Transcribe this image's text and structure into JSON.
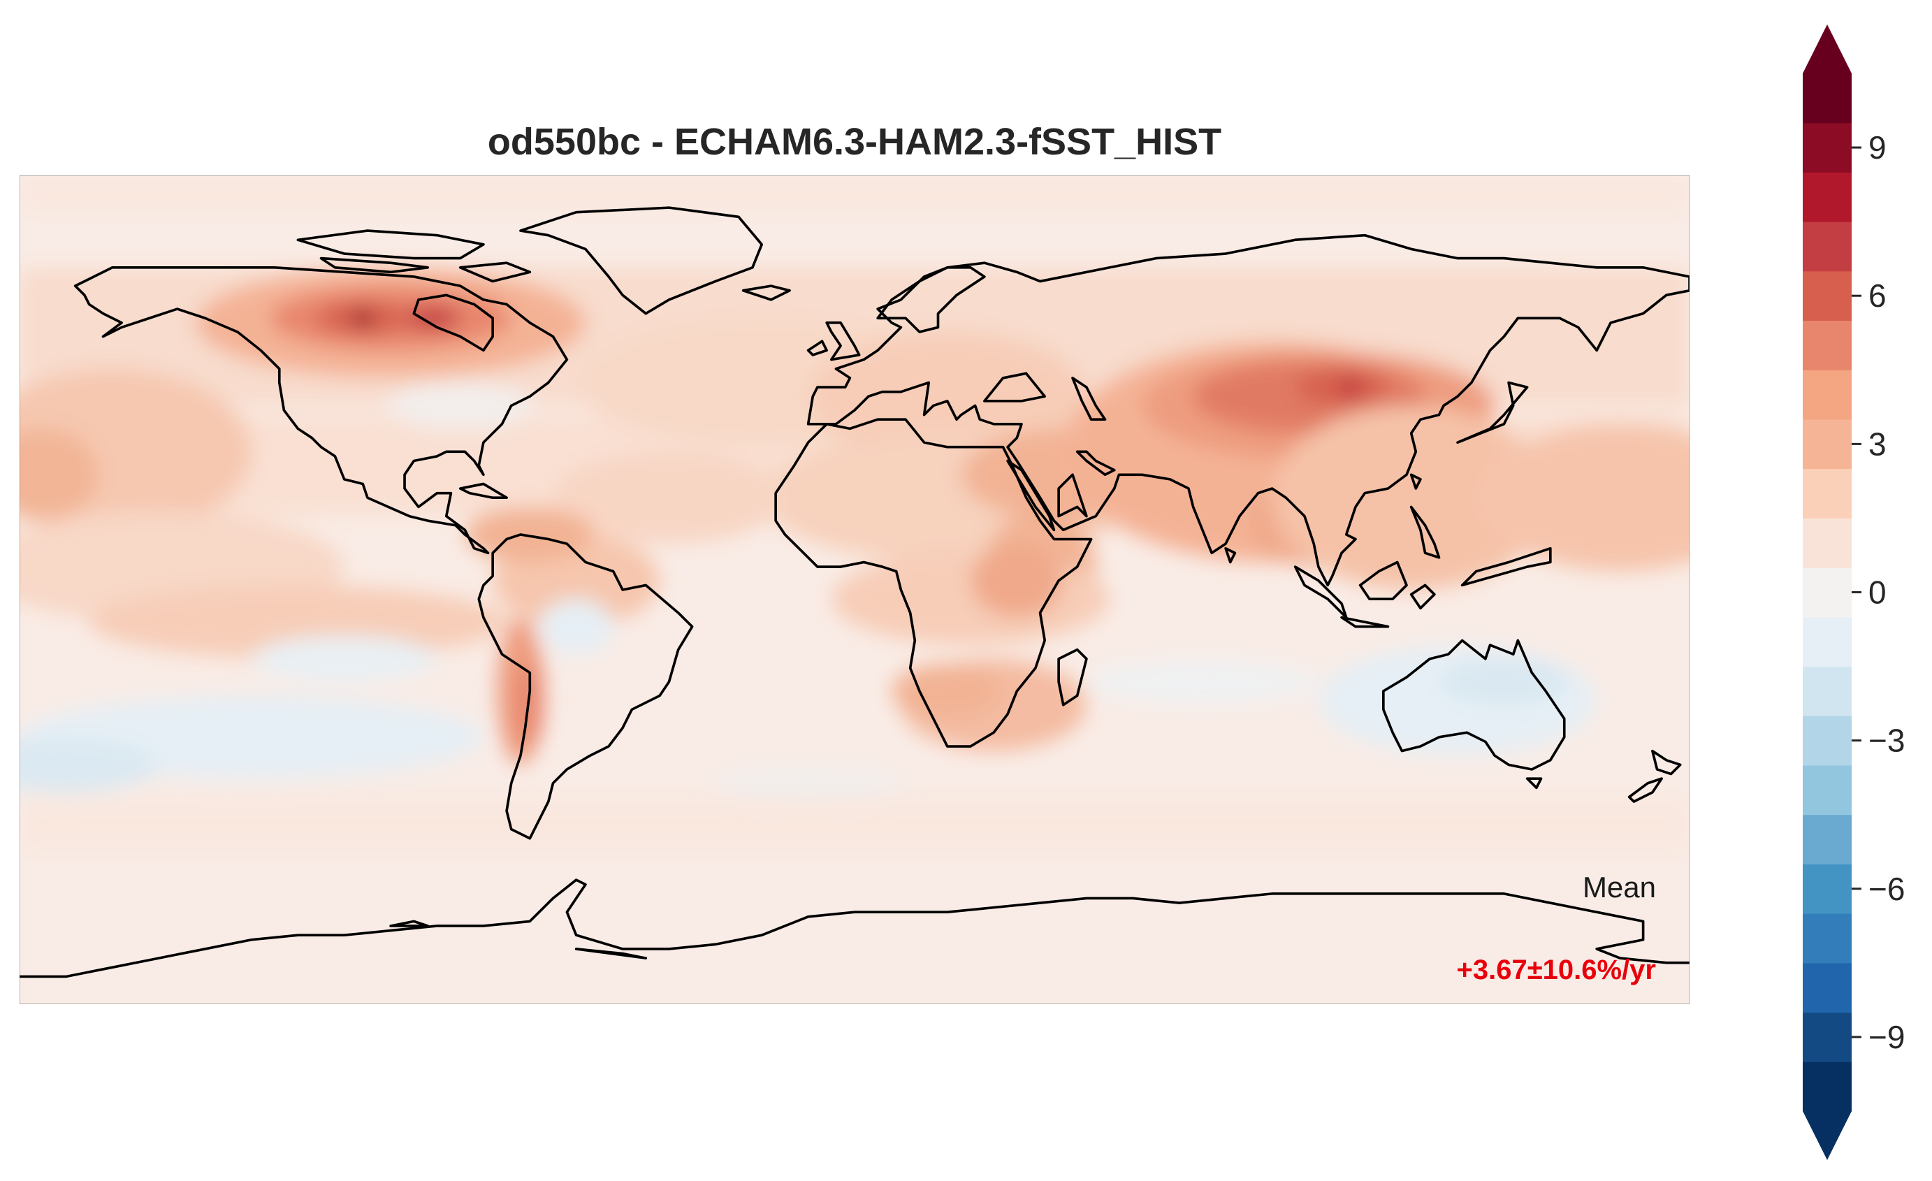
{
  "title": "od550bc - ECHAM6.3-HAM2.3-fSST_HIST",
  "annotation": {
    "label": "Mean",
    "value": "+3.67±10.6%/yr",
    "value_color": "#e8000b"
  },
  "colorbar": {
    "ticks": [
      "9",
      "6",
      "3",
      "0",
      "−3",
      "−6",
      "−9"
    ],
    "tick_values": [
      9,
      6,
      3,
      0,
      -3,
      -6,
      -9
    ],
    "range": [
      -10.5,
      10.5
    ],
    "extend": "both",
    "levels": [
      -10.5,
      -9.5,
      -8.5,
      -7.5,
      -6.5,
      -5.5,
      -4.5,
      -3.5,
      -2.5,
      -1.5,
      -0.5,
      0.5,
      1.5,
      2.5,
      3.5,
      4.5,
      5.5,
      6.5,
      7.5,
      8.5,
      9.5,
      10.5
    ],
    "colors": [
      "#053061",
      "#144a84",
      "#2166ac",
      "#327dba",
      "#4393c3",
      "#6aa9d0",
      "#92c5de",
      "#b2d5e8",
      "#d1e5f0",
      "#e6eff5",
      "#f4f2f0",
      "#f9e3d8",
      "#fbd0b9",
      "#f6b496",
      "#f4a582",
      "#e8866d",
      "#d6604d",
      "#c33e42",
      "#b2182b",
      "#8c0c25",
      "#67001f"
    ],
    "under_color": "#053061",
    "over_color": "#67001f",
    "colormap": "RdBu_r"
  },
  "map": {
    "projection": "PlateCarree",
    "background_level_color": "#f9ece6",
    "coastline_color": "#000000"
  }
}
